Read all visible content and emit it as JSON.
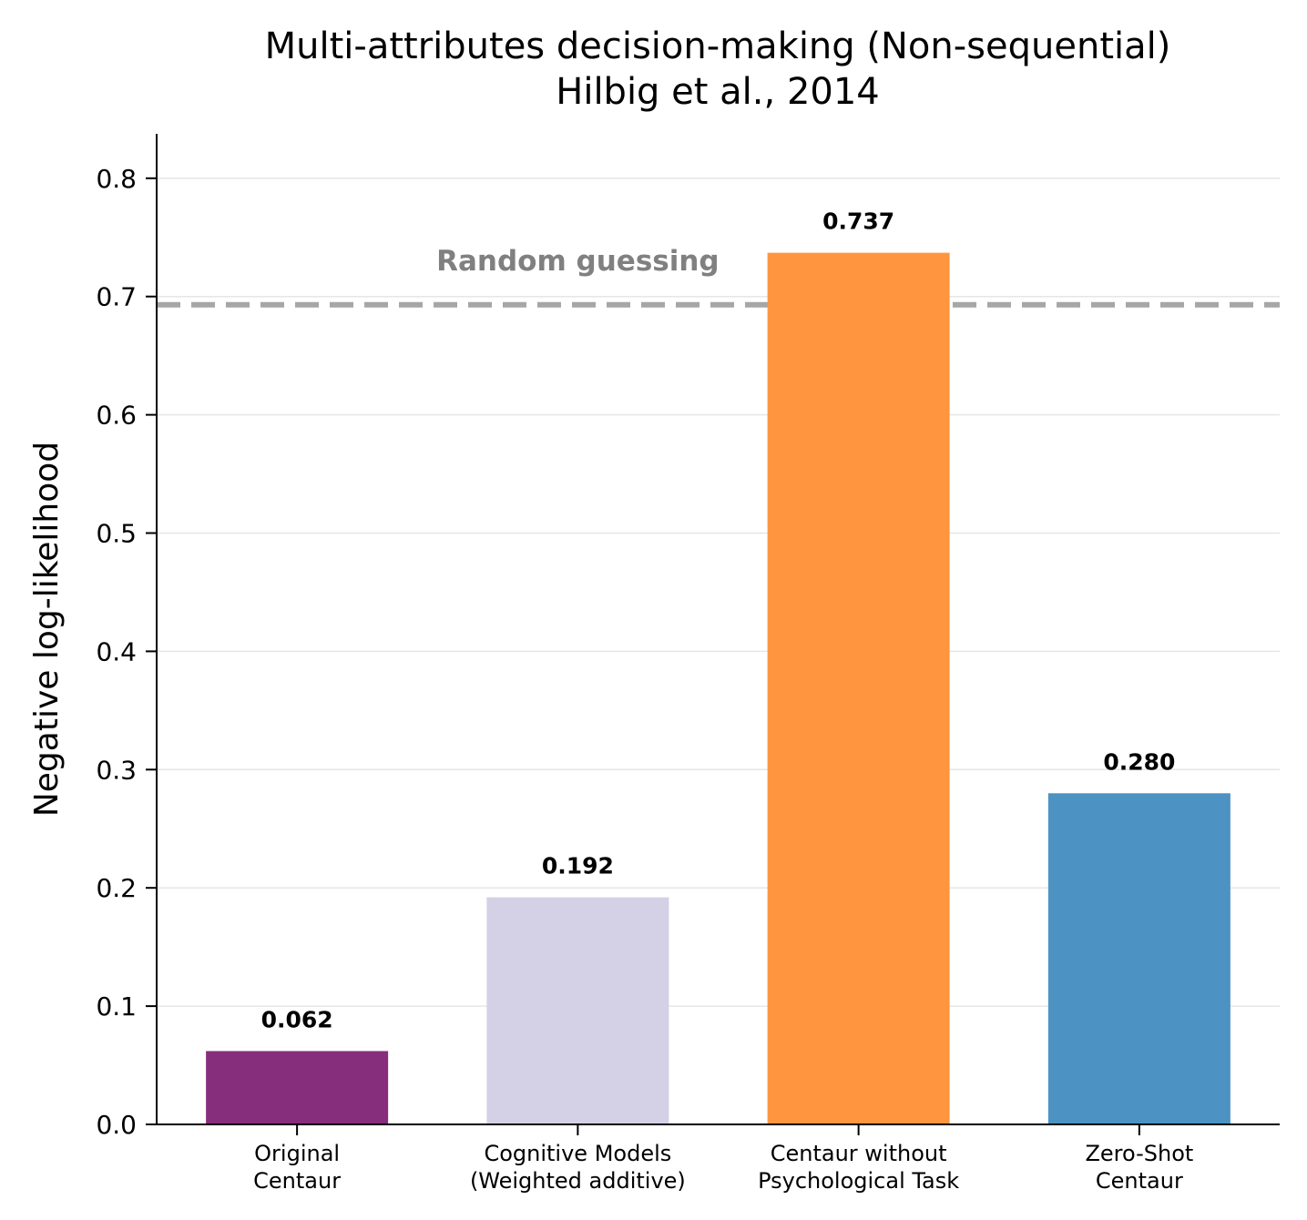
{
  "chart_data": {
    "type": "bar",
    "title": [
      "Multi-attributes decision-making (Non-sequential)",
      "Hilbig et al., 2014"
    ],
    "ylabel": "Negative log-likelihood",
    "xlabel": "",
    "ylim": [
      0,
      0.84
    ],
    "yticks": [
      0.0,
      0.1,
      0.2,
      0.3,
      0.4,
      0.5,
      0.6,
      0.7,
      0.8
    ],
    "ytick_labels": [
      "0.0",
      "0.1",
      "0.2",
      "0.3",
      "0.4",
      "0.5",
      "0.6",
      "0.7",
      "0.8"
    ],
    "grid": "horizontal",
    "categories": [
      [
        "Original",
        "Centaur"
      ],
      [
        "Cognitive Models",
        "(Weighted additive)"
      ],
      [
        "Centaur without",
        "Psychological Task"
      ],
      [
        "Zero-Shot",
        "Centaur"
      ]
    ],
    "values": [
      0.062,
      0.192,
      0.737,
      0.28
    ],
    "value_labels": [
      "0.062",
      "0.192",
      "0.737",
      "0.280"
    ],
    "colors": [
      "#862e7c",
      "#d4d1e6",
      "#ff963f",
      "#4c93c3"
    ],
    "reference_line": {
      "value": 0.693,
      "label": "Random guessing",
      "color": "#a6a6a6",
      "style": "dashed"
    }
  }
}
